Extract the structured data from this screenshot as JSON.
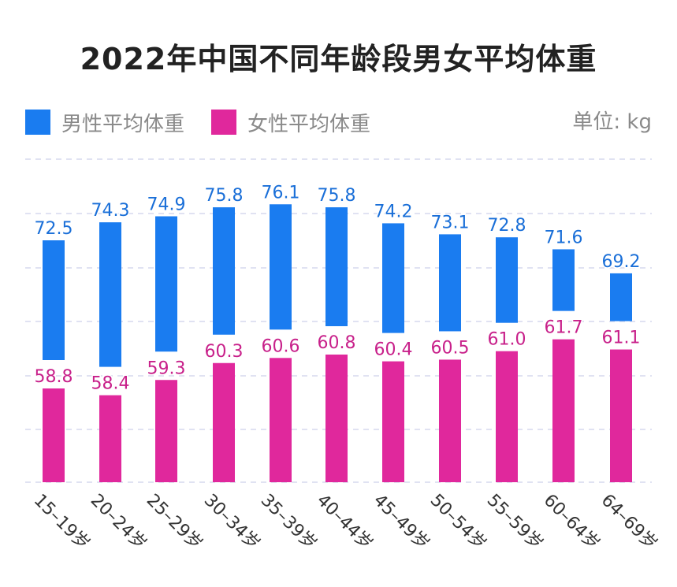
{
  "chart_data": {
    "type": "bar",
    "title": "2022年中国不同年龄段男女平均体重",
    "unit_label": "单位: kg",
    "categories": [
      "15–19岁",
      "20–24岁",
      "25–29岁",
      "30–34岁",
      "35–39岁",
      "40–44岁",
      "45–49岁",
      "50–54岁",
      "55–59岁",
      "60–64岁",
      "64–69岁"
    ],
    "series": [
      {
        "name": "男性平均体重",
        "color": "#1a7cf0",
        "label_color": "#1a6fd8",
        "values": [
          72.5,
          74.3,
          74.9,
          75.8,
          76.1,
          75.8,
          74.2,
          73.1,
          72.8,
          71.6,
          69.2
        ],
        "value_labels": [
          "72.5",
          "74.3",
          "74.9",
          "75.8",
          "76.1",
          "75.8",
          "74.2",
          "73.1",
          "72.8",
          "71.6",
          "69.2"
        ]
      },
      {
        "name": "女性平均体重",
        "color": "#e0289c",
        "label_color": "#c8208a",
        "values": [
          58.8,
          58.4,
          59.3,
          60.3,
          60.6,
          60.8,
          60.4,
          60.5,
          61.0,
          61.7,
          61.1
        ],
        "value_labels": [
          "58.8",
          "58.4",
          "59.3",
          "60.3",
          "60.6",
          "60.8",
          "60.4",
          "60.5",
          "61.0",
          "61.7",
          "61.1"
        ]
      }
    ],
    "grid": true,
    "legend_position": "top-left"
  }
}
